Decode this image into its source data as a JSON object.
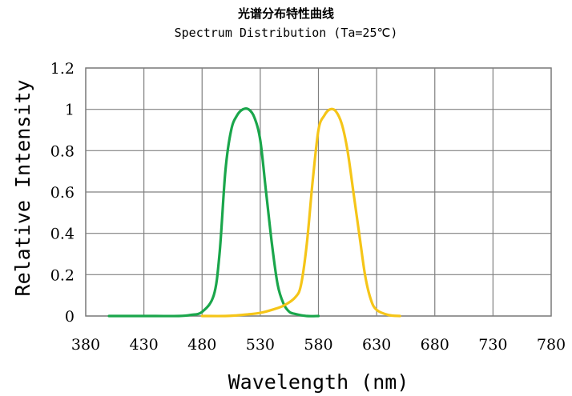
{
  "chart_data": {
    "type": "line",
    "title": "光谱分布特性曲线",
    "subtitle": "Spectrum Distribution  (Ta=25℃)",
    "xlabel": "Wavelength (nm)",
    "ylabel": "Relative Intensity",
    "xlim": [
      380,
      780
    ],
    "ylim": [
      0,
      1.2
    ],
    "x_ticks": [
      "380",
      "430",
      "480",
      "530",
      "580",
      "630",
      "680",
      "730",
      "780"
    ],
    "y_ticks": [
      "0",
      "0.2",
      "0.4",
      "0.6",
      "0.8",
      "1",
      "1.2"
    ],
    "grid": true,
    "series": [
      {
        "color": "#1aa64b",
        "x": [
          400,
          420,
          440,
          460,
          470,
          480,
          490,
          495,
          500,
          505,
          510,
          515,
          520,
          525,
          530,
          535,
          540,
          545,
          550,
          555,
          560,
          570,
          580
        ],
        "y": [
          0,
          0,
          0,
          0,
          0.005,
          0.02,
          0.1,
          0.3,
          0.7,
          0.9,
          0.97,
          1.0,
          1.0,
          0.96,
          0.85,
          0.6,
          0.35,
          0.15,
          0.06,
          0.02,
          0.01,
          0.0,
          0.0
        ]
      },
      {
        "color": "#f5c518",
        "x": [
          480,
          500,
          510,
          520,
          530,
          540,
          550,
          560,
          565,
          570,
          575,
          580,
          585,
          590,
          595,
          600,
          605,
          610,
          615,
          620,
          625,
          630,
          640,
          650
        ],
        "y": [
          0,
          0.0,
          0.003,
          0.008,
          0.015,
          0.03,
          0.05,
          0.09,
          0.15,
          0.35,
          0.65,
          0.9,
          0.97,
          1.0,
          0.99,
          0.93,
          0.8,
          0.6,
          0.4,
          0.2,
          0.08,
          0.03,
          0.005,
          0.0
        ]
      }
    ]
  }
}
